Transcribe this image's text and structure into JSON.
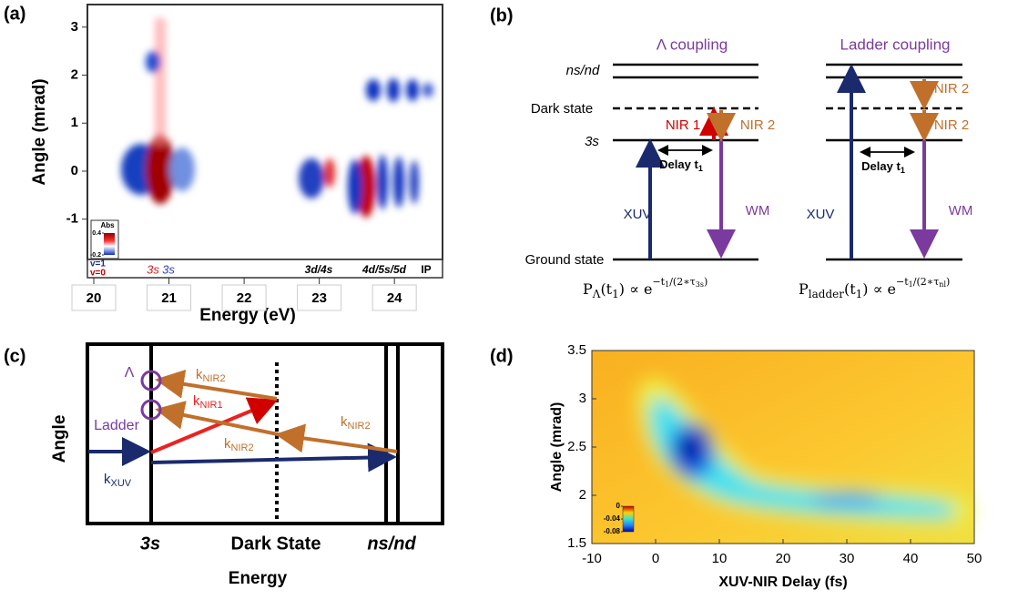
{
  "panel_a": {
    "label": "(a)",
    "xlabel": "Energy (eV)",
    "ylabel": "Angle (mrad)",
    "xlim": [
      19.915,
      24.64
    ],
    "ylim": [
      -1.84,
      3.47
    ],
    "xticks": [
      20,
      21,
      22,
      23,
      24
    ],
    "yticks": [
      -1,
      0,
      1,
      2,
      3
    ],
    "colorbar": {
      "title": "Abs",
      "lim": [
        -0.2,
        0.4
      ],
      "ticks": [
        0.4,
        -0.2
      ]
    },
    "annotations": {
      "v1": "v=1",
      "v0": "v=0",
      "s_red": "3s",
      "s_blue": "3s",
      "d4s": "3d/4s",
      "d5s": "4d/5s/5d",
      "ip": "IP"
    }
  },
  "panel_b": {
    "label": "(b)",
    "lambda_title": "Λ coupling",
    "ladder_title": "Ladder coupling",
    "levels": {
      "nsnd": "ns/nd",
      "dark": "Dark state",
      "s3": "3s",
      "ground": "Ground state"
    },
    "lambda": {
      "nir1": "NIR 1",
      "nir2": "NIR 2",
      "xuv": "XUV",
      "wm": "WM",
      "delay": "Delay t",
      "delay_sub": "1"
    },
    "ladder": {
      "nir2_top": "NIR 2",
      "nir2_bottom": "NIR 2",
      "xuv": "XUV",
      "wm": "WM",
      "delay": "Delay t",
      "delay_sub": "1"
    },
    "formula_lambda": [
      [
        "P",
        ""
      ],
      [
        "Λ",
        "sub"
      ],
      [
        "(t",
        ""
      ],
      [
        "1",
        "sub"
      ],
      [
        ") ∝ e",
        ""
      ],
      [
        "−t",
        "sup"
      ],
      [
        "1",
        "supsub"
      ],
      [
        "/(2∗τ",
        "sup"
      ],
      [
        "3s",
        "supsub"
      ],
      [
        ")",
        "sup"
      ]
    ],
    "formula_ladder": [
      [
        "P",
        ""
      ],
      [
        "ladder",
        "sub"
      ],
      [
        "(t",
        ""
      ],
      [
        "1",
        "sub"
      ],
      [
        ") ∝ e",
        ""
      ],
      [
        "−t",
        "sup"
      ],
      [
        "1",
        "supsub"
      ],
      [
        "/(2∗τ",
        "sup"
      ],
      [
        "nl",
        "supsub"
      ],
      [
        ")",
        "sup"
      ]
    ]
  },
  "panel_c": {
    "label": "(c)",
    "xlabel": "Energy",
    "ylabel": "Angle",
    "lambda": "Λ",
    "ladder": "Ladder",
    "states": {
      "s3": "3s",
      "dark": "Dark State",
      "nsnd": "ns/nd"
    },
    "k_labels": [
      {
        "k": "k",
        "sub": "NIR2"
      },
      {
        "k": "k",
        "sub": "NIR1"
      },
      {
        "k": "k",
        "sub": "NIR2"
      },
      {
        "k": "k",
        "sub": "NIR2"
      },
      {
        "k": "k",
        "sub": "XUV"
      }
    ]
  },
  "panel_d": {
    "label": "(d)",
    "xlabel": "XUV-NIR Delay (fs)",
    "ylabel": "Angle (mrad)",
    "xlim": [
      -10,
      50
    ],
    "ylim": [
      1.5,
      3.5
    ],
    "xticks": [
      -10,
      0,
      10,
      20,
      30,
      40,
      50
    ],
    "yticks": [
      1.5,
      2,
      2.5,
      3,
      3.5
    ],
    "colorbar": {
      "lim": [
        -0.08,
        0
      ],
      "ticks": [
        0,
        -0.04,
        -0.08
      ]
    }
  }
}
